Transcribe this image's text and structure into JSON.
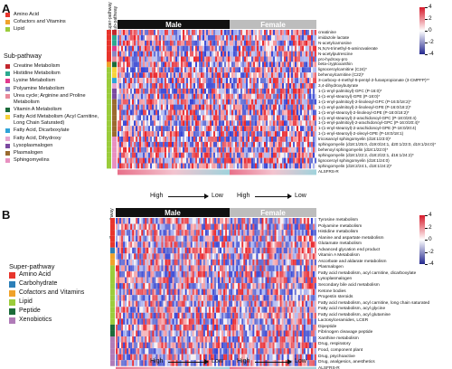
{
  "panels": {
    "A": {
      "letter": "A",
      "legend": {
        "super_pathway_items": [
          {
            "label": "Amino Acid",
            "color": "#e8352c"
          },
          {
            "label": "Cofactors and Vitamins",
            "color": "#f0a22a"
          },
          {
            "label": "Lipid",
            "color": "#9bcc3b"
          }
        ],
        "sub_pathway_title": "Sub-pathway",
        "sub_pathway_items": [
          {
            "label": "Creatine Metabolism",
            "color": "#c2272d"
          },
          {
            "label": "Histidine Metabolism",
            "color": "#2ba98f"
          },
          {
            "label": "Lysine Metabolism",
            "color": "#e23a8d"
          },
          {
            "label": "Polyamine Metabolism",
            "color": "#8b85c1"
          },
          {
            "label": "Urea cycle; Arginine and Proline Metabolism",
            "color": "#e98a9b"
          },
          {
            "label": "Vitamin A Metabolism",
            "color": "#1c6b3a"
          },
          {
            "label": "Fatty Acid Metabolism (Acyl Carnitine, Long Chain Saturated)",
            "color": "#f7d23a"
          },
          {
            "label": "Fatty Acid, Dicarboxylate",
            "color": "#2fa3d8"
          },
          {
            "label": "Fatty Acid, Dihydroxy",
            "color": "#e6a3cf"
          },
          {
            "label": "Lysoplasmalogen",
            "color": "#7b4aa0"
          },
          {
            "label": "Plasmalogen",
            "color": "#9a6a2f"
          },
          {
            "label": "Sphingomyelins",
            "color": "#e890c0"
          }
        ]
      },
      "column_header_labels": [
        "Super-pathway",
        "Sub-pathway"
      ],
      "groups": {
        "male": "Male",
        "female": "Female"
      },
      "row_labels": [
        "creatinine",
        "imidazole lactate",
        "N-acetylcarnosine",
        "N,N,N-trimethyl-5-aminovalerate",
        "N-acetylputrescine",
        "pro-hydroxy-pro",
        "beta-cryptoxanthin",
        "lignoceroylcarnitine (C24)*",
        "behenoylcarnitine (C22)*",
        "3-carboxy-4-methyl-5-pentyl-2-furanpropionate (3-CMPFP)**",
        "3,4-dihydroxybutyrate",
        "1-(1-enyl-palmitoyl)-GPC (P-16:0)*",
        "1-(1-enyl-stearoyl)-GPE (P-18:0)*",
        "1-(1-enyl-palmitoyl)-2-linoleoyl-GPC (P-16:0/18:2)*",
        "1-(1-enyl-palmitoyl)-2-linoleoyl-GPE (P-16:0/18:2)*",
        "1-(1-enyl-stearoyl)-2-linoleoyl-GPE (P-18:0/18:2)*",
        "1-(1-enyl-stearoyl)-2-arachidonoyl-GPC (P-18:0/20:4)",
        "1-(1-enyl-palmitoyl)-2-arachidonoyl-GPC (P-16:0/20:4)*",
        "1-(1-enyl-stearoyl)-2-arachidonoyl-GPE (P-18:0/20:4)",
        "1-(1-enyl-stearoyl)-2-oleoyl-GPE (P-18:0/18:1)",
        "tricosanoyl sphingomyelin (d18:1/23:0)*",
        "sphingomyelin (d18:1/25:0, d19:0/24:1, d20:1/23:0, d19:1/24:0)*",
        "behenoyl sphingomyelin (d18:1/22:0)*",
        "sphingomyelin (d18:1/22:2, d18:2/22:1, d16:1/24:2)*",
        "lignoceroyl sphingomyelin (d18:1/24:0)",
        "sphingomyelin (d18:2/24:1, d18:1/24:2)*",
        "ALSFRS-R"
      ],
      "super_pathway_rows": [
        "#e8352c",
        "#e8352c",
        "#e8352c",
        "#e8352c",
        "#e8352c",
        "#e8352c",
        "#f0a22a",
        "#9bcc3b",
        "#9bcc3b",
        "#9bcc3b",
        "#9bcc3b",
        "#9bcc3b",
        "#9bcc3b",
        "#9bcc3b",
        "#9bcc3b",
        "#9bcc3b",
        "#9bcc3b",
        "#9bcc3b",
        "#9bcc3b",
        "#9bcc3b",
        "#9bcc3b",
        "#9bcc3b",
        "#9bcc3b",
        "#9bcc3b",
        "#9bcc3b",
        "#9bcc3b"
      ],
      "sub_pathway_rows": [
        "#c2272d",
        "#2ba98f",
        "#2ba98f",
        "#e23a8d",
        "#8b85c1",
        "#e98a9b",
        "#1c6b3a",
        "#f7d23a",
        "#f7d23a",
        "#2fa3d8",
        "#e6a3cf",
        "#7b4aa0",
        "#7b4aa0",
        "#9a6a2f",
        "#9a6a2f",
        "#9a6a2f",
        "#9a6a2f",
        "#9a6a2f",
        "#9a6a2f",
        "#9a6a2f",
        "#e890c0",
        "#e890c0",
        "#e890c0",
        "#e890c0",
        "#e890c0",
        "#e890c0"
      ],
      "scale": {
        "high": "High",
        "low": "Low"
      },
      "colorbar": {
        "ticks": [
          "4",
          "2",
          "0",
          "-2",
          "-4"
        ]
      }
    },
    "B": {
      "letter": "B",
      "legend": {
        "title": "Super-pathway",
        "items": [
          {
            "label": "Amino Acid",
            "color": "#e8352c"
          },
          {
            "label": "Carbohydrate",
            "color": "#2c7fb8"
          },
          {
            "label": "Cofactors and Vitamins",
            "color": "#f0a22a"
          },
          {
            "label": "Lipid",
            "color": "#9bcc3b"
          },
          {
            "label": "Peptide",
            "color": "#1c6b3a"
          },
          {
            "label": "Xenobiotics",
            "color": "#b07bb8"
          }
        ]
      },
      "column_header_label": "Super-pathway",
      "groups": {
        "male": "Male",
        "female": "Female"
      },
      "row_labels": [
        "Tyrosine metabolism",
        "Polyamine metabolism",
        "Histidine metabolism",
        "Alanine and aspartate metabolism",
        "Glutamate metabolism",
        "Advanced glycation end product",
        "Vitamin A Metabolism",
        "Ascorbate and aldarate metabolism",
        "Plasmalogen",
        "Fatty acid metabolism, acyl carnitine, dicarboxylate",
        "Lysoplasmalogen",
        "Secondary bile acid metabolism",
        "Ketone bodies",
        "Progestin steroids",
        "Fatty acid metabolism, acyl carnitine, long chain saturated",
        "Fatty acid metabolism, acyl glycine",
        "Fatty acid metabolism, acyl glutamine",
        "Lactosylceramides, LCER",
        "Dipeptide",
        "Fibrinogen cleavage peptide",
        "Xanthine metabolism",
        "Drug, respiratory",
        "Food, component plant",
        "Drug, psychoactive",
        "Drug, analgesics, anesthetics",
        "ALSFRS-R"
      ],
      "super_pathway_rows": [
        "#e8352c",
        "#e8352c",
        "#e8352c",
        "#e8352c",
        "#e8352c",
        "#2c7fb8",
        "#f0a22a",
        "#f0a22a",
        "#9bcc3b",
        "#9bcc3b",
        "#9bcc3b",
        "#9bcc3b",
        "#9bcc3b",
        "#9bcc3b",
        "#9bcc3b",
        "#9bcc3b",
        "#9bcc3b",
        "#9bcc3b",
        "#1c6b3a",
        "#1c6b3a",
        "#b07bb8",
        "#b07bb8",
        "#b07bb8",
        "#b07bb8",
        "#b07bb8"
      ],
      "scale": {
        "high": "High",
        "low": "Low"
      },
      "colorbar": {
        "ticks": [
          "4",
          "2",
          "0",
          "-2",
          "-4"
        ]
      }
    }
  }
}
